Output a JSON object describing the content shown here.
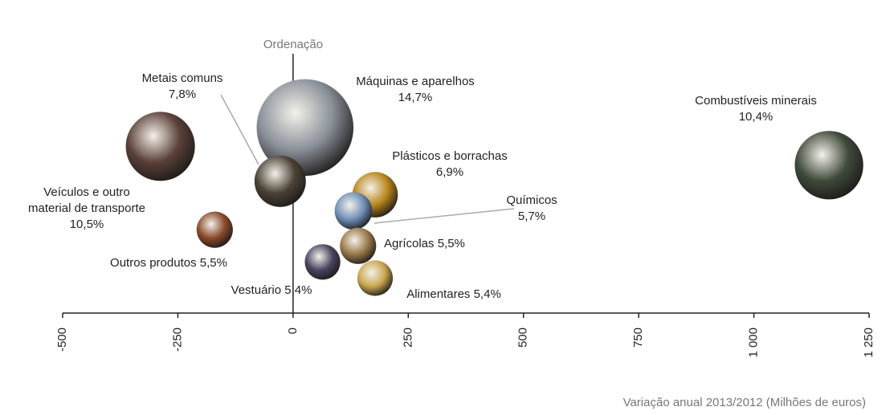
{
  "chart_data": {
    "type": "bubble",
    "y_label": "Ordenação",
    "x_label": "Variação anual 2013/2012 (Milhões de euros)",
    "categories": [
      "Máquinas e aparelhos",
      "Combustíveis minerais",
      "Veículos e outro material de transporte",
      "Metais comuns",
      "Plásticos e borrachas",
      "Químicos",
      "Agrícolas",
      "Outros produtos",
      "Vestuário",
      "Alimentares"
    ],
    "x": [
      26,
      1163,
      -288,
      -28,
      178,
      131,
      141,
      -170,
      64,
      178
    ],
    "values": [
      69,
      55,
      62,
      49,
      44,
      38,
      25,
      31,
      19,
      13
    ],
    "sizes": [
      14.7,
      10.4,
      10.5,
      7.8,
      6.9,
      5.7,
      5.5,
      5.5,
      5.4,
      5.4
    ],
    "value_labels": [
      "14,7%",
      "10,4%",
      "10,5%",
      "7,8%",
      "6,9%",
      "5,7%",
      "5,5%",
      "5,5%",
      "5,4%",
      "5,4%"
    ],
    "colors": [
      "#8a9099",
      "#3f4a3a",
      "#5a4038",
      "#4a4236",
      "#b8861c",
      "#6f8fb8",
      "#9a7a4a",
      "#8a4a2a",
      "#4a4460",
      "#c9a650"
    ],
    "xlim": [
      -500,
      1250
    ],
    "ylim": [
      0,
      100
    ],
    "xticks": [
      -500,
      -250,
      0,
      250,
      500,
      750,
      {
        "value": 1000,
        "label": "1 000"
      },
      {
        "value": 1250,
        "label": "1 250"
      }
    ]
  }
}
